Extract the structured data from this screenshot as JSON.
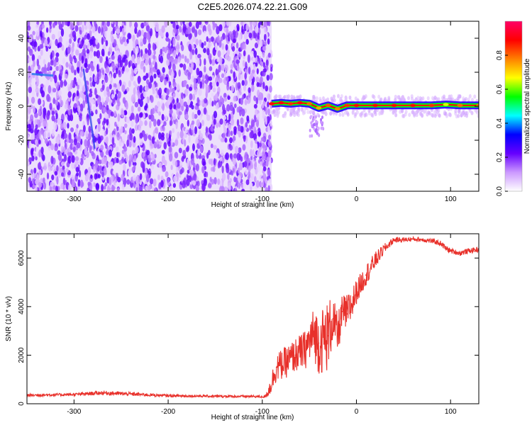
{
  "title": "C2E5.2026.074.22.21.G09",
  "chart_data": [
    {
      "type": "heatmap",
      "id": "spectrogram",
      "xlabel": "Height of straight line (km)",
      "ylabel": "Frequency (Hz)",
      "xlim": [
        -350,
        130
      ],
      "ylim": [
        -50,
        50
      ],
      "x_ticks": [
        -300,
        -200,
        -100,
        0,
        100
      ],
      "x_tick_labels": [
        "-300",
        "-200",
        "-100",
        "0",
        "100"
      ],
      "y_ticks": [
        -40,
        -20,
        0,
        20,
        40
      ],
      "y_tick_labels": [
        "-40",
        "-20",
        "0",
        "20",
        "40"
      ],
      "noise_region_x": [
        -350,
        -90
      ],
      "trace": [
        {
          "x": -90,
          "freq": 1.5,
          "amp": 0.88
        },
        {
          "x": -80,
          "freq": 2.0,
          "amp": 0.9
        },
        {
          "x": -70,
          "freq": 1.5,
          "amp": 0.85
        },
        {
          "x": -60,
          "freq": 2.0,
          "amp": 0.9
        },
        {
          "x": -50,
          "freq": 1.5,
          "amp": 0.8
        },
        {
          "x": -40,
          "freq": -1.0,
          "amp": 0.75
        },
        {
          "x": -30,
          "freq": 0.5,
          "amp": 0.82
        },
        {
          "x": -20,
          "freq": -1.5,
          "amp": 0.78
        },
        {
          "x": -10,
          "freq": 0.5,
          "amp": 0.85
        },
        {
          "x": 0,
          "freq": 0.5,
          "amp": 0.88
        },
        {
          "x": 20,
          "freq": 0.5,
          "amp": 0.88
        },
        {
          "x": 40,
          "freq": 0.5,
          "amp": 0.88
        },
        {
          "x": 60,
          "freq": 0.5,
          "amp": 0.88
        },
        {
          "x": 80,
          "freq": 0.5,
          "amp": 0.85
        },
        {
          "x": 95,
          "freq": 1.0,
          "amp": 0.65
        },
        {
          "x": 110,
          "freq": 0.5,
          "amp": 0.8
        },
        {
          "x": 130,
          "freq": 0.5,
          "amp": 0.8
        }
      ],
      "colorbar": {
        "label": "Normalized spectral amplitude",
        "range": [
          0,
          1
        ],
        "ticks": [
          0.0,
          0.2,
          0.4,
          0.6,
          0.8
        ],
        "tick_labels": [
          "0.0",
          "0.2",
          "0.4",
          "0.6",
          "0.8"
        ],
        "colors": [
          "#ffffff",
          "#cc99ff",
          "#6600ff",
          "#0000ff",
          "#00ffff",
          "#00ff00",
          "#ffff00",
          "#ff8000",
          "#ff0000",
          "#ff0066"
        ]
      }
    },
    {
      "type": "line",
      "id": "snr",
      "xlabel": "Height of straight line (km)",
      "ylabel": "SNR (10 * v/v)",
      "xlim": [
        -350,
        130
      ],
      "ylim": [
        0,
        7000
      ],
      "x_ticks": [
        -300,
        -200,
        -100,
        0,
        100
      ],
      "x_tick_labels": [
        "-300",
        "-200",
        "-100",
        "0",
        "100"
      ],
      "y_ticks": [
        0,
        2000,
        4000,
        6000
      ],
      "y_tick_labels": [
        "0",
        "2000",
        "4000",
        "6000"
      ],
      "color": "#e8302a",
      "series": [
        {
          "name": "SNR",
          "x": [
            -350,
            -300,
            -270,
            -200,
            -150,
            -110,
            -97,
            -92,
            -85,
            -75,
            -65,
            -55,
            -45,
            -40,
            -30,
            -25,
            -20,
            -15,
            -10,
            -5,
            0,
            10,
            20,
            30,
            40,
            50,
            60,
            70,
            80,
            90,
            95,
            100,
            110,
            120,
            130
          ],
          "y": [
            350,
            380,
            450,
            330,
            310,
            300,
            290,
            650,
            1500,
            1700,
            2000,
            2200,
            2900,
            2500,
            2800,
            3500,
            2800,
            3800,
            3700,
            4100,
            4600,
            5300,
            5900,
            6400,
            6750,
            6750,
            6780,
            6760,
            6700,
            6600,
            6400,
            6300,
            6200,
            6300,
            6350
          ],
          "noise": [
            60,
            60,
            90,
            55,
            50,
            50,
            50,
            350,
            600,
            650,
            700,
            800,
            1100,
            1300,
            1500,
            1000,
            900,
            700,
            800,
            750,
            500,
            450,
            350,
            200,
            120,
            100,
            90,
            100,
            100,
            110,
            110,
            110,
            110,
            110,
            110
          ]
        }
      ]
    }
  ]
}
